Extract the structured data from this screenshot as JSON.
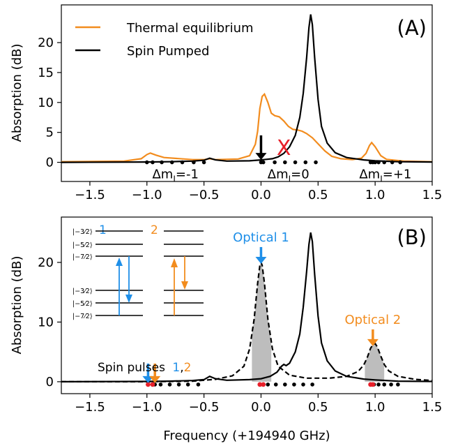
{
  "colors": {
    "thermal": "#f28c1e",
    "pumped": "#000000",
    "blue": "#1f8fe8",
    "red": "#e8202a",
    "fill": "#bdbdbd"
  },
  "chart_data": [
    {
      "type": "line",
      "panel_label": "(A)",
      "xlabel": "",
      "ylabel": "Absorption (dB)",
      "xlim": [
        -1.75,
        1.5
      ],
      "ylim": [
        -3.2,
        26.3
      ],
      "xticks": [
        -1.5,
        -1.0,
        -0.5,
        0.0,
        0.5,
        1.0,
        1.5
      ],
      "xtick_labels": [
        "−1.5",
        "−1.0",
        "−0.5",
        "0.0",
        "0.5",
        "1.0",
        "1.5"
      ],
      "yticks": [
        0,
        5,
        10,
        15,
        20
      ],
      "legend_position": "top-left",
      "series": [
        {
          "name": "Thermal equilibrium",
          "color": "#f28c1e",
          "points": [
            [
              -1.75,
              0.1
            ],
            [
              -1.2,
              0.2
            ],
            [
              -1.05,
              0.6
            ],
            [
              -1.0,
              1.3
            ],
            [
              -0.97,
              1.55
            ],
            [
              -0.92,
              1.2
            ],
            [
              -0.85,
              0.8
            ],
            [
              -0.6,
              0.45
            ],
            [
              -0.5,
              0.45
            ],
            [
              -0.45,
              0.6
            ],
            [
              -0.4,
              0.45
            ],
            [
              -0.2,
              0.55
            ],
            [
              -0.1,
              1.1
            ],
            [
              -0.05,
              3.0
            ],
            [
              -0.03,
              5.2
            ],
            [
              -0.01,
              9.0
            ],
            [
              0.01,
              11.0
            ],
            [
              0.03,
              11.4
            ],
            [
              0.06,
              10.0
            ],
            [
              0.09,
              8.2
            ],
            [
              0.12,
              7.8
            ],
            [
              0.16,
              7.6
            ],
            [
              0.2,
              6.9
            ],
            [
              0.24,
              6.0
            ],
            [
              0.28,
              5.5
            ],
            [
              0.32,
              5.4
            ],
            [
              0.36,
              5.2
            ],
            [
              0.4,
              4.8
            ],
            [
              0.45,
              4.1
            ],
            [
              0.5,
              3.1
            ],
            [
              0.56,
              1.9
            ],
            [
              0.62,
              1.0
            ],
            [
              0.7,
              0.6
            ],
            [
              0.8,
              0.45
            ],
            [
              0.88,
              0.7
            ],
            [
              0.92,
              1.5
            ],
            [
              0.95,
              2.8
            ],
            [
              0.97,
              3.3
            ],
            [
              1.0,
              2.6
            ],
            [
              1.05,
              1.1
            ],
            [
              1.1,
              0.5
            ],
            [
              1.25,
              0.2
            ],
            [
              1.5,
              0.1
            ]
          ]
        },
        {
          "name": "Spin Pumped",
          "color": "#000000",
          "points": [
            [
              -1.75,
              0.0
            ],
            [
              -1.0,
              0.05
            ],
            [
              -0.8,
              0.1
            ],
            [
              -0.6,
              0.2
            ],
            [
              -0.5,
              0.35
            ],
            [
              -0.45,
              0.7
            ],
            [
              -0.4,
              0.4
            ],
            [
              -0.3,
              0.2
            ],
            [
              -0.1,
              0.25
            ],
            [
              0.0,
              0.4
            ],
            [
              0.1,
              0.6
            ],
            [
              0.15,
              0.9
            ],
            [
              0.2,
              1.5
            ],
            [
              0.25,
              2.6
            ],
            [
              0.3,
              4.5
            ],
            [
              0.34,
              7.5
            ],
            [
              0.37,
              11.5
            ],
            [
              0.4,
              17.5
            ],
            [
              0.42,
              22.5
            ],
            [
              0.435,
              24.7
            ],
            [
              0.45,
              23.0
            ],
            [
              0.47,
              17.5
            ],
            [
              0.5,
              10.5
            ],
            [
              0.53,
              6.0
            ],
            [
              0.58,
              3.2
            ],
            [
              0.65,
              1.6
            ],
            [
              0.75,
              0.8
            ],
            [
              0.9,
              0.4
            ],
            [
              1.0,
              0.25
            ],
            [
              1.2,
              0.1
            ],
            [
              1.5,
              0.05
            ]
          ]
        }
      ],
      "dot_groups": [
        {
          "label": "Δm_I=-1",
          "label_main": "Δm",
          "label_sub": "I",
          "label_rest": "=-1",
          "dots": [
            -1.0,
            -0.95,
            -0.87,
            -0.78,
            -0.69,
            -0.59,
            -0.5
          ]
        },
        {
          "label": "Δm_I=0",
          "label_main": "Δm",
          "label_sub": "I",
          "label_rest": "=0",
          "dots": [
            0.0,
            0.02,
            0.12,
            0.21,
            0.3,
            0.39,
            0.48
          ]
        },
        {
          "label": "Δm_I=+1",
          "label_main": "Δm",
          "label_sub": "I",
          "label_rest": "=+1",
          "dots": [
            0.96,
            0.98,
            1.0,
            1.03,
            1.08,
            1.15,
            1.22
          ]
        }
      ],
      "annotations": [
        {
          "kind": "down-arrow",
          "x": 0.0,
          "y_from": 4.5,
          "y_to": 0.4,
          "color": "#000000"
        },
        {
          "kind": "cross-mark",
          "text": "X",
          "x": 0.2,
          "y": 2.5,
          "color": "#e8202a"
        }
      ]
    },
    {
      "type": "line",
      "panel_label": "(B)",
      "xlabel": "Frequency (+194940 GHz)",
      "ylabel": "Absorption (dB)",
      "xlim": [
        -1.75,
        1.5
      ],
      "ylim": [
        -2.0,
        27.6
      ],
      "xticks": [
        -1.5,
        -1.0,
        -0.5,
        0.0,
        0.5,
        1.0,
        1.5
      ],
      "xtick_labels": [
        "−1.5",
        "−1.0",
        "−0.5",
        "0.0",
        "0.5",
        "1.0",
        "1.5"
      ],
      "yticks": [
        0,
        10,
        20
      ],
      "series": [
        {
          "style": "solid",
          "color": "#000000",
          "points": [
            [
              -1.75,
              0.0
            ],
            [
              -1.0,
              0.05
            ],
            [
              -0.8,
              0.1
            ],
            [
              -0.6,
              0.2
            ],
            [
              -0.5,
              0.35
            ],
            [
              -0.45,
              0.9
            ],
            [
              -0.4,
              0.5
            ],
            [
              -0.3,
              0.25
            ],
            [
              -0.1,
              0.35
            ],
            [
              0.0,
              0.5
            ],
            [
              0.08,
              0.9
            ],
            [
              0.14,
              1.6
            ],
            [
              0.18,
              2.6
            ],
            [
              0.2,
              2.9
            ],
            [
              0.22,
              2.7
            ],
            [
              0.25,
              3.1
            ],
            [
              0.3,
              5.0
            ],
            [
              0.34,
              8.0
            ],
            [
              0.37,
              12.5
            ],
            [
              0.4,
              18.5
            ],
            [
              0.42,
              23.0
            ],
            [
              0.435,
              25.0
            ],
            [
              0.45,
              23.5
            ],
            [
              0.47,
              18.0
            ],
            [
              0.5,
              11.0
            ],
            [
              0.53,
              6.5
            ],
            [
              0.58,
              3.5
            ],
            [
              0.65,
              1.8
            ],
            [
              0.75,
              0.9
            ],
            [
              0.9,
              0.45
            ],
            [
              1.0,
              0.3
            ],
            [
              1.2,
              0.1
            ],
            [
              1.5,
              0.05
            ]
          ]
        },
        {
          "style": "dashed",
          "color": "#000000",
          "points": [
            [
              -1.75,
              0.0
            ],
            [
              -1.0,
              0.0
            ],
            [
              -0.6,
              0.1
            ],
            [
              -0.4,
              0.4
            ],
            [
              -0.25,
              1.0
            ],
            [
              -0.15,
              2.6
            ],
            [
              -0.1,
              5.5
            ],
            [
              -0.06,
              10.5
            ],
            [
              -0.03,
              16.5
            ],
            [
              -0.01,
              19.5
            ],
            [
              0.0,
              20.0
            ],
            [
              0.01,
              19.5
            ],
            [
              0.03,
              16.5
            ],
            [
              0.06,
              10.5
            ],
            [
              0.1,
              5.5
            ],
            [
              0.15,
              2.6
            ],
            [
              0.25,
              1.1
            ],
            [
              0.4,
              0.6
            ],
            [
              0.6,
              0.6
            ],
            [
              0.75,
              0.9
            ],
            [
              0.85,
              1.7
            ],
            [
              0.9,
              2.8
            ],
            [
              0.93,
              4.0
            ],
            [
              0.96,
              5.6
            ],
            [
              0.98,
              6.2
            ],
            [
              1.0,
              6.4
            ],
            [
              1.02,
              5.8
            ],
            [
              1.05,
              4.3
            ],
            [
              1.08,
              2.9
            ],
            [
              1.12,
              1.8
            ],
            [
              1.2,
              0.9
            ],
            [
              1.35,
              0.4
            ],
            [
              1.5,
              0.2
            ]
          ]
        }
      ],
      "shaded_regions": [
        [
          -0.08,
          0.09
        ],
        [
          0.91,
          1.08
        ]
      ],
      "dots_black": [
        -0.93,
        -0.88,
        -0.8,
        -0.72,
        -0.64,
        -0.55,
        0.02,
        0.06,
        0.13,
        0.21,
        0.29,
        0.37,
        0.45,
        0.99,
        1.03,
        1.08,
        1.14,
        1.2
      ],
      "dots_red": [
        -0.99,
        -0.95,
        -0.01,
        0.02,
        0.96,
        0.98
      ],
      "annotations": [
        {
          "kind": "optical-arrow",
          "text": "Optical 1",
          "x": 0.0,
          "color": "#1f8fe8"
        },
        {
          "kind": "optical-arrow",
          "text": "Optical 2",
          "x": 0.98,
          "color": "#f28c1e"
        }
      ],
      "spin_pulses": {
        "label": "Spin pulses",
        "num1": "1",
        "comma": ",",
        "num2": "2",
        "arrow1_x": -0.99,
        "arrow2_x": -0.93
      },
      "inset": {
        "label1": "1",
        "label2": "2",
        "upper_levels": [
          "|−3⁄2⟩",
          "|−5⁄2⟩",
          "|−7⁄2⟩"
        ],
        "lower_levels": [
          "|−3⁄2⟩",
          "|−5⁄2⟩",
          "|−7⁄2⟩"
        ]
      }
    }
  ]
}
